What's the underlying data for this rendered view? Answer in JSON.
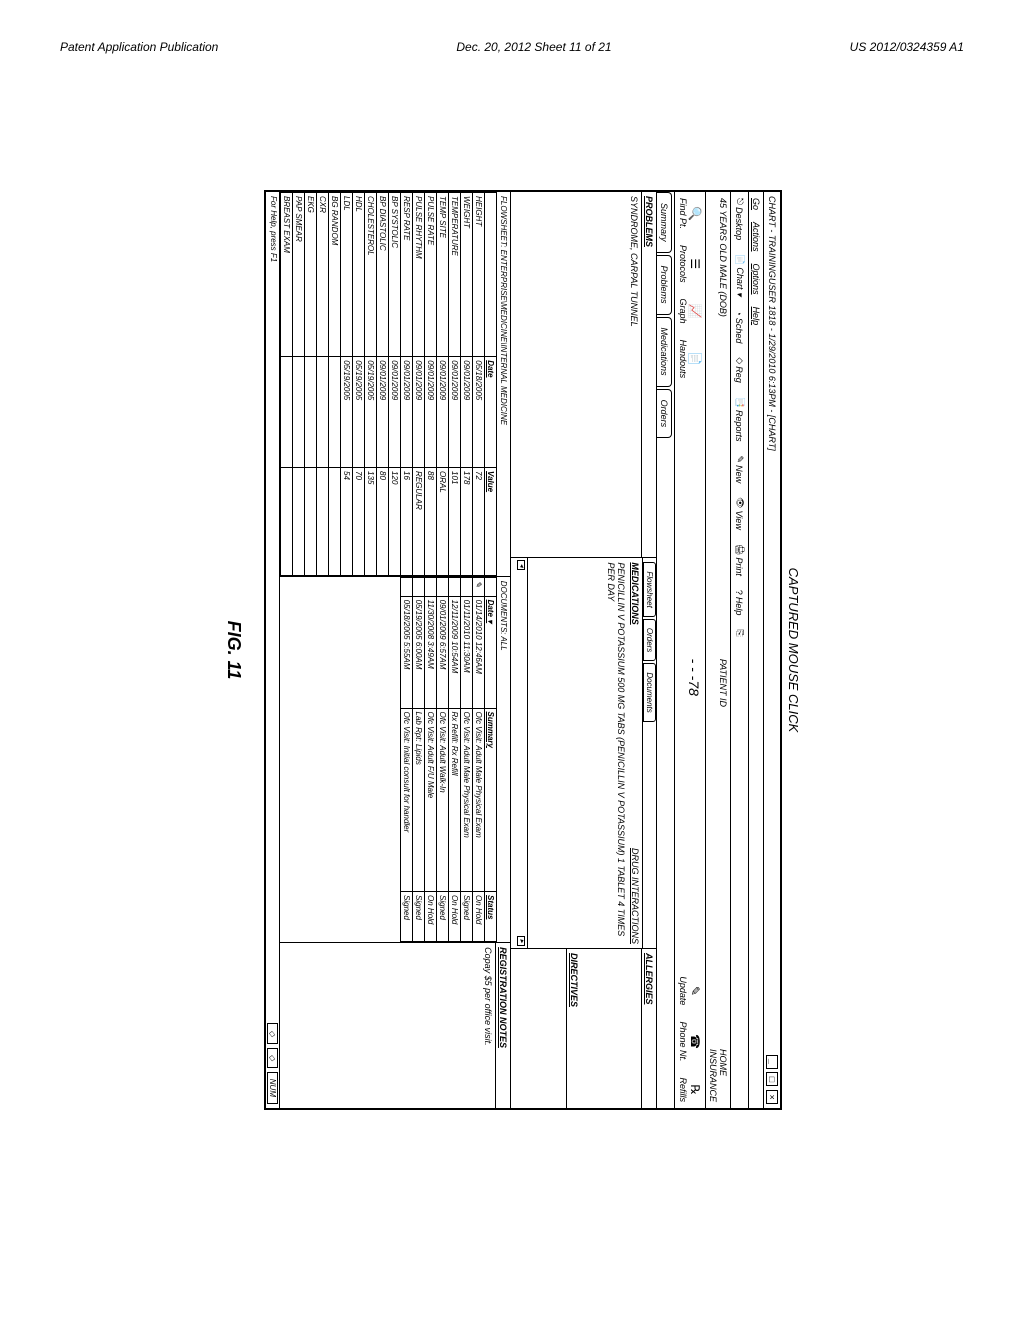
{
  "page": {
    "header_left": "Patent Application Publication",
    "header_mid": "Dec. 20, 2012  Sheet 11 of 21",
    "header_right": "US 2012/0324359 A1",
    "figure_label": "FIG. 11",
    "caption_above": "CAPTURED MOUSE CLICK"
  },
  "window": {
    "title": "CHART - TRAININGUSER 1818                                   - 1/29/2010 6:13PM - [CHART]",
    "min": "_",
    "max": "□",
    "close": "×"
  },
  "menubar": [
    "Go",
    "Actions",
    "Options",
    "Help"
  ],
  "toolbar1": [
    {
      "icon": "⎋",
      "label": "Desktop"
    },
    {
      "icon": "📄",
      "label": "Chart ▾"
    },
    {
      "icon": "◔",
      "label": "Sched"
    },
    {
      "icon": "◇",
      "label": "Reg"
    },
    {
      "icon": "📑",
      "label": "Reports"
    },
    {
      "icon": "✎",
      "label": "New"
    },
    {
      "icon": "👁",
      "label": "View"
    },
    {
      "icon": "🖨",
      "label": "Print"
    },
    {
      "icon": "?",
      "label": "Help"
    },
    {
      "icon": "⎘",
      "label": ""
    }
  ],
  "patientbar": {
    "left": "45 YEARS OLD MALE (DOB)",
    "mid": "PATIENT ID",
    "right": "HOME\nINSURANCE"
  },
  "toolbar2_left": [
    {
      "icon": "🔍",
      "label": "Find Pt."
    },
    {
      "icon": "☰",
      "label": "Protocols"
    },
    {
      "icon": "📈",
      "label": "Graph"
    },
    {
      "icon": "📄",
      "label": "Handouts"
    }
  ],
  "dashed_center": "- - -78",
  "toolbar2_right": [
    {
      "icon": "✎",
      "label": "Update"
    },
    {
      "icon": "☎",
      "label": "Phone Nt."
    },
    {
      "icon": "℞",
      "label": "Refills"
    }
  ],
  "tabs": [
    "Summary",
    "Problems",
    "Medications",
    "Orders"
  ],
  "problems": {
    "header": "PROBLEMS",
    "body": "SYNDROME, CARPAL TUNNEL"
  },
  "subtabs": [
    "Flowsheet",
    "Orders",
    "Documents"
  ],
  "medications": {
    "header": "MEDICATIONS",
    "link": "DRUG INTERACTIONS",
    "body": "PENICILLIN V POTASSIUM 500 MG TABS (PENICILLIN V POTASSIUM) 1 TABLET 4 TIMES PER DAY"
  },
  "right_panels": {
    "allergies": "ALLERGIES",
    "directives": "DIRECTIVES",
    "registration": "REGISTRATION NOTES",
    "registration_body": "Copay $5 per office visit."
  },
  "flowsheet": {
    "title": "FLOWSHEET: ENTERPRISE\\MEDICINE\\INTERNAL MEDICINE",
    "columns": [
      "",
      "Date",
      "Value"
    ],
    "rows": [
      [
        "HEIGHT",
        "05/18/2005",
        "72"
      ],
      [
        "WEIGHT",
        "09/01/2009",
        "178"
      ],
      [
        "TEMPERATURE",
        "09/01/2009",
        "101"
      ],
      [
        "TEMP SITE",
        "09/01/2009",
        "ORAL"
      ],
      [
        "PULSE RATE",
        "09/01/2009",
        "88"
      ],
      [
        "PULSE RHYTHM",
        "09/01/2009",
        "REGULAR"
      ],
      [
        "RESP RATE",
        "09/01/2009",
        "16"
      ],
      [
        "BP SYSTOLIC",
        "09/01/2009",
        "120"
      ],
      [
        "BP DIASTOLIC",
        "09/01/2009",
        "80"
      ],
      [
        "CHOLESTEROL",
        "05/19/2005",
        "135"
      ],
      [
        "HDL",
        "05/19/2005",
        "70"
      ],
      [
        "LDL",
        "05/19/2005",
        "54"
      ],
      [
        "BG RANDOM",
        "",
        ""
      ],
      [
        "CXR",
        "",
        ""
      ],
      [
        "EKG",
        "",
        ""
      ],
      [
        "PAP SMEAR",
        "",
        ""
      ],
      [
        "BREAST EXAM",
        "",
        ""
      ]
    ]
  },
  "documents": {
    "title": "DOCUMENTS: ALL",
    "columns": [
      "",
      "Date ▾",
      "Summary",
      "Status"
    ],
    "rows": [
      [
        "✎",
        "01/14/2010 12:46AM",
        "Ofc Visit: Adult Male Physical Exam",
        "On Hold"
      ],
      [
        "",
        "01/11/2010 11:30AM",
        "Ofc Visit: Adult Male Physical Exam",
        "Signed"
      ],
      [
        "",
        "12/11/2009 10:54AM",
        "Rx Refill: Rx Refill",
        "On Hold"
      ],
      [
        "",
        "09/01/2009 6:57AM",
        "Ofc Visit: Adult Walk-In",
        "Signed"
      ],
      [
        "",
        "11/30/2008 3:49AM",
        "Ofc Visit: Adult F/U Male",
        "On Hold"
      ],
      [
        "",
        "05/19/2005 6:00AM",
        "Lab Rpt: Lipids",
        "Signed"
      ],
      [
        "",
        "05/18/2005 5:55AM",
        "Ofc Visit: Initial consult for handler",
        "Signed"
      ]
    ]
  },
  "statusbar": {
    "left": "For Help, press F1",
    "icons": [
      "◇",
      "◇"
    ],
    "num": "NUM"
  }
}
